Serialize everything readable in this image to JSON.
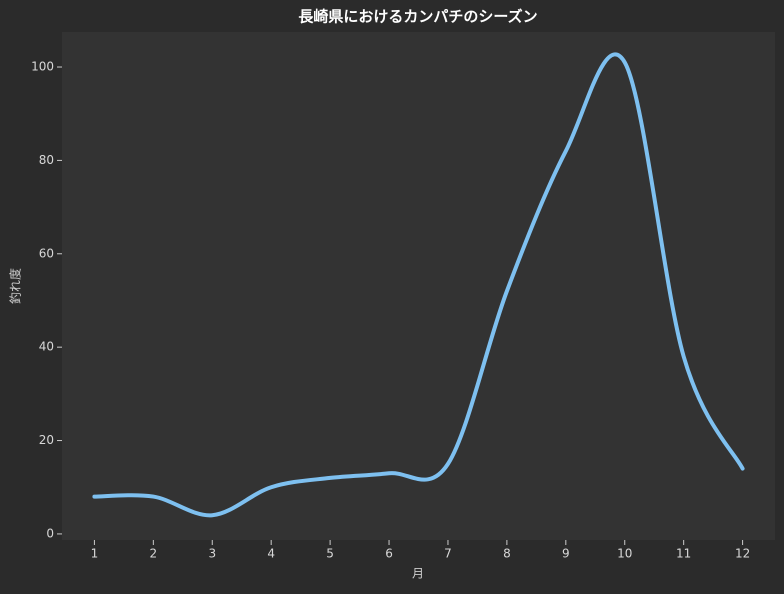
{
  "chart_data": {
    "type": "line",
    "title": "長崎県におけるカンパチのシーズン",
    "x_label": "月",
    "y_label": "釣れ度",
    "x": [
      1,
      2,
      3,
      4,
      5,
      6,
      7,
      8,
      9,
      10,
      11,
      12
    ],
    "values": [
      8,
      8,
      4,
      10,
      12,
      13,
      15,
      52,
      82,
      101,
      38,
      14
    ],
    "color": "#7ec0f0",
    "xlim": [
      0.45,
      12.55
    ],
    "ylim": [
      -1.3,
      107.5
    ],
    "xticks": [
      1,
      2,
      3,
      4,
      5,
      6,
      7,
      8,
      9,
      10,
      11,
      12
    ],
    "yticks": [
      0,
      20,
      40,
      60,
      80,
      100
    ],
    "smooth": true
  }
}
